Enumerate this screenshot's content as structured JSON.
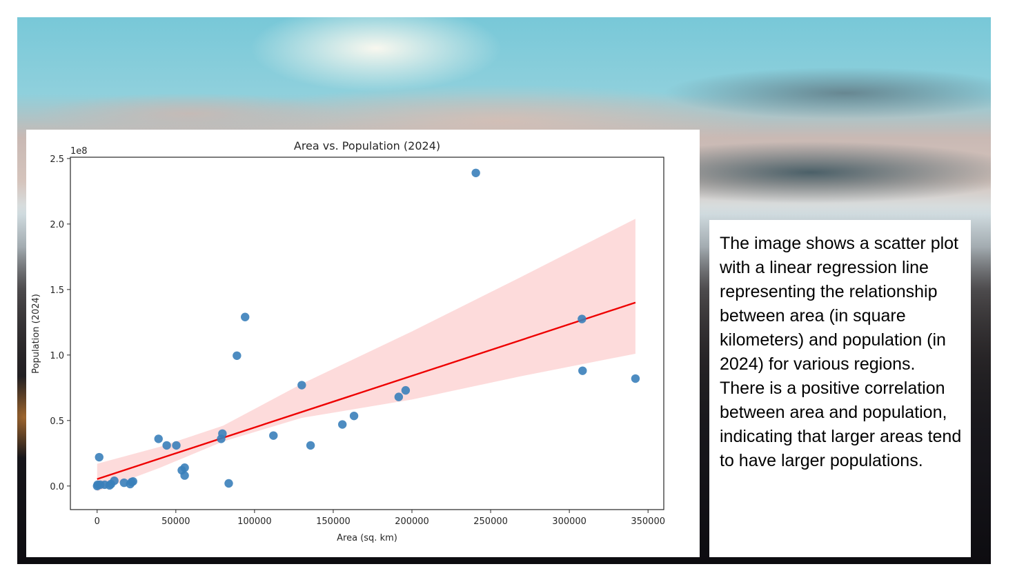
{
  "slide": {
    "description_text": "The image shows a scatter plot with a linear regression line representing the relationship between area (in square kilometers) and population (in 2024) for various regions. There is a positive correlation between area and population, indicating that larger areas tend to have larger populations."
  },
  "chart_data": {
    "type": "scatter",
    "title": "Area vs. Population (2024)",
    "xlabel": "Area (sq. km)",
    "ylabel": "Population (2024)",
    "y_offset_label": "1e8",
    "xlim": [
      -17000,
      360000
    ],
    "ylim": [
      -0.18,
      2.51
    ],
    "x_ticks": [
      0,
      50000,
      100000,
      150000,
      200000,
      250000,
      300000,
      350000
    ],
    "x_tick_labels": [
      "0",
      "50000",
      "100000",
      "150000",
      "200000",
      "250000",
      "300000",
      "350000"
    ],
    "y_ticks": [
      0.0,
      0.5,
      1.0,
      1.5,
      2.0,
      2.5
    ],
    "y_tick_labels": [
      "0.0",
      "0.5",
      "1.0",
      "1.5",
      "2.0",
      "2.5"
    ],
    "grid": false,
    "colors": {
      "points": "#3a7fba",
      "regression_line": "#ee0000",
      "confidence_band": "#fdd5d5"
    },
    "series": [
      {
        "name": "regions",
        "points": [
          {
            "x": 240600,
            "y": 2.39
          },
          {
            "x": 94000,
            "y": 1.29
          },
          {
            "x": 88800,
            "y": 0.995
          },
          {
            "x": 308000,
            "y": 1.275
          },
          {
            "x": 308400,
            "y": 0.88
          },
          {
            "x": 342000,
            "y": 0.82
          },
          {
            "x": 130000,
            "y": 0.77
          },
          {
            "x": 196000,
            "y": 0.73
          },
          {
            "x": 191600,
            "y": 0.68
          },
          {
            "x": 163200,
            "y": 0.535
          },
          {
            "x": 155800,
            "y": 0.47
          },
          {
            "x": 112000,
            "y": 0.385
          },
          {
            "x": 135600,
            "y": 0.31
          },
          {
            "x": 79600,
            "y": 0.4
          },
          {
            "x": 78800,
            "y": 0.36
          },
          {
            "x": 39000,
            "y": 0.36
          },
          {
            "x": 44200,
            "y": 0.31
          },
          {
            "x": 50300,
            "y": 0.31
          },
          {
            "x": 53800,
            "y": 0.12
          },
          {
            "x": 55600,
            "y": 0.14
          },
          {
            "x": 55600,
            "y": 0.08
          },
          {
            "x": 83600,
            "y": 0.02
          },
          {
            "x": 1300,
            "y": 0.22
          },
          {
            "x": 300,
            "y": 0.01
          },
          {
            "x": 0,
            "y": 0.0
          },
          {
            "x": 2000,
            "y": 0.01
          },
          {
            "x": 4800,
            "y": 0.01
          },
          {
            "x": 7900,
            "y": 0.005
          },
          {
            "x": 8800,
            "y": 0.015
          },
          {
            "x": 10900,
            "y": 0.04
          },
          {
            "x": 17100,
            "y": 0.025
          },
          {
            "x": 21000,
            "y": 0.015
          },
          {
            "x": 21900,
            "y": 0.03
          },
          {
            "x": 22800,
            "y": 0.035
          }
        ]
      }
    ],
    "regression": {
      "x_range": [
        0,
        342000
      ],
      "intercept": 0.053,
      "slope_per_unit": 3.94e-06,
      "confidence_band": {
        "x": [
          0,
          40000,
          80000,
          130000,
          200000,
          270000,
          342000
        ],
        "upper": [
          0.17,
          0.3,
          0.46,
          0.78,
          1.18,
          1.6,
          2.04
        ],
        "lower": [
          -0.04,
          0.14,
          0.34,
          0.52,
          0.66,
          0.84,
          1.01
        ]
      }
    }
  }
}
